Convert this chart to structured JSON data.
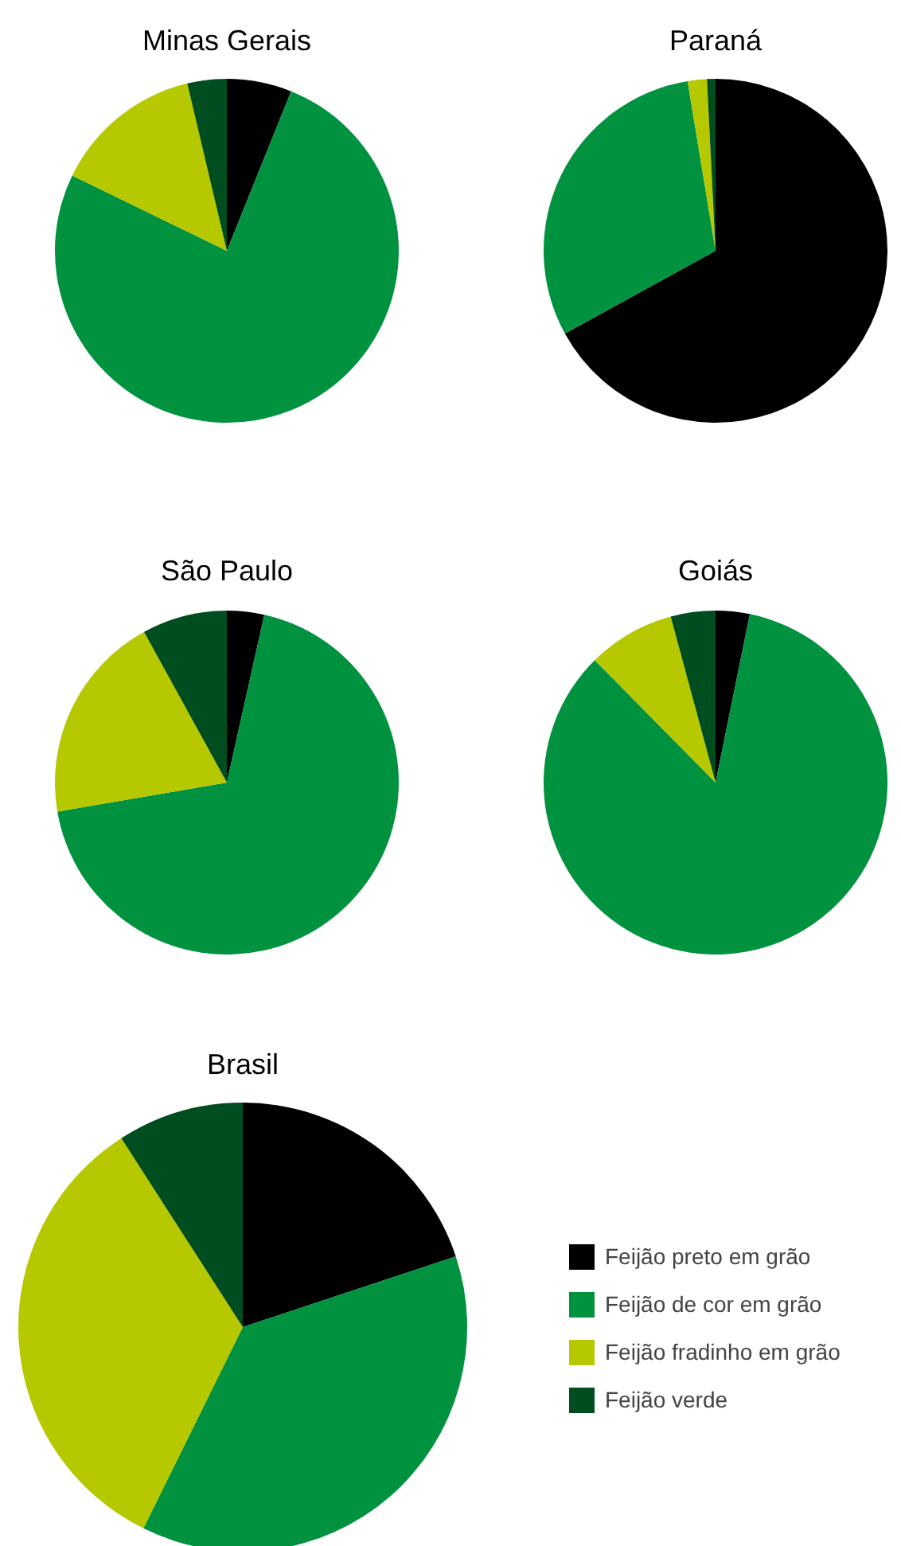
{
  "chart_data": [
    {
      "type": "pie",
      "title": "Minas Gerais",
      "categories": [
        "Feijão preto em grão",
        "Feijão de cor em grão",
        "Feijão fradinho em grão",
        "Feijão verde"
      ],
      "values": [
        6.1,
        76.1,
        14.1,
        3.7
      ],
      "colors": [
        "#000000",
        "#00923f",
        "#b5c800",
        "#004d1f"
      ],
      "legend": "bottom right"
    },
    {
      "type": "pie",
      "title": "Paraná",
      "categories": [
        null,
        null,
        null,
        null
      ],
      "values": [
        67,
        30.4,
        1.8,
        0.8
      ],
      "colors": [
        "#000000",
        "#00923f",
        "#b5c800",
        "#004d1f"
      ]
    },
    {
      "type": "pie",
      "title": "São Paulo",
      "categories": [
        null,
        null,
        null,
        null
      ],
      "values": [
        3.5,
        68.8,
        19.7,
        8
      ],
      "colors": [
        "#000000",
        "#00923f",
        "#b5c800",
        "#004d1f"
      ]
    },
    {
      "type": "pie",
      "title": "Goiás",
      "categories": [
        null,
        null,
        null,
        null
      ],
      "values": [
        3.2,
        84.4,
        8.2,
        4.2
      ],
      "colors": [
        "#000000",
        "#00923f",
        "#b5c800",
        "#004d1f"
      ]
    },
    {
      "type": "pie",
      "title": "Brasil",
      "categories": [
        null,
        null,
        null,
        null
      ],
      "values": [
        19.9,
        37.4,
        33.6,
        9.1
      ],
      "colors": [
        "#000000",
        "#00923f",
        "#b5c800",
        "#004d1f"
      ]
    }
  ]
}
